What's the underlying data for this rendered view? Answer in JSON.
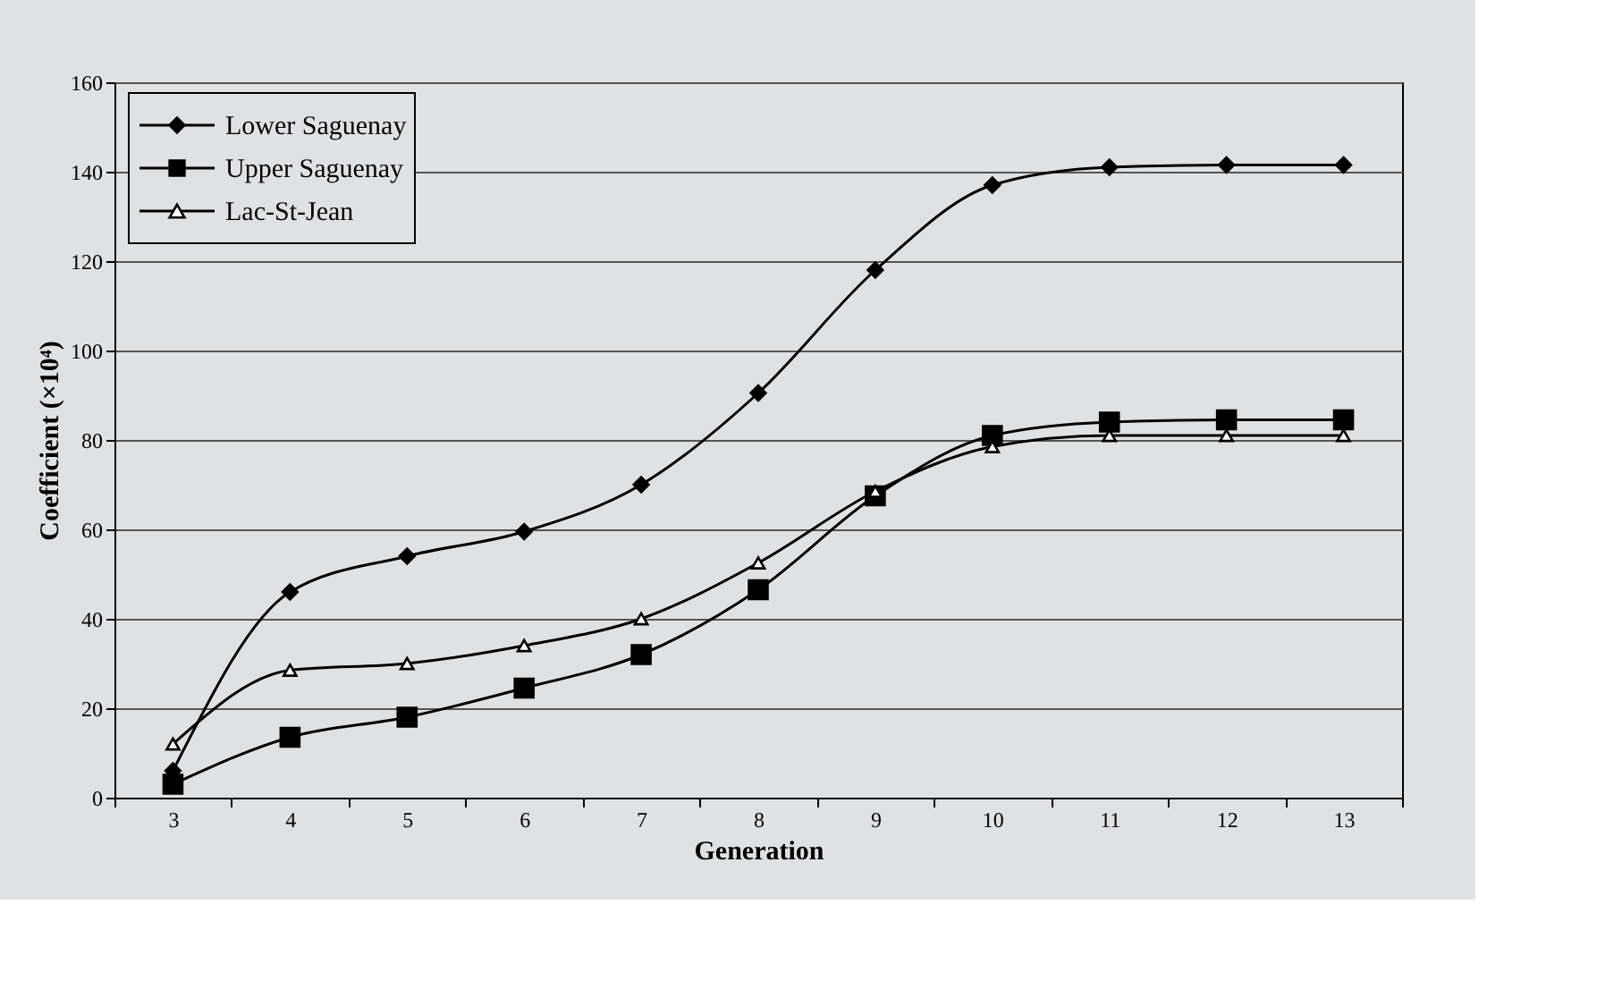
{
  "chart_data": {
    "type": "line",
    "xlabel": "Generation",
    "ylabel": "Coefficient (×10⁴)",
    "categories": [
      "3",
      "4",
      "5",
      "6",
      "7",
      "8",
      "9",
      "10",
      "11",
      "12",
      "13"
    ],
    "ylim": [
      0,
      160
    ],
    "yticks": [
      0,
      20,
      40,
      60,
      80,
      100,
      120,
      140,
      160
    ],
    "grid": "y",
    "legend": "top left",
    "series": [
      {
        "name": "Lower Saguenay",
        "color": "#000000",
        "marker": "diamond",
        "values": [
          6,
          46,
          54,
          59.5,
          70,
          90.5,
          118,
          137,
          141,
          141.5,
          141.5
        ]
      },
      {
        "name": "Upper Saguenay",
        "color": "#000000",
        "marker": "square",
        "values": [
          3,
          13.5,
          18,
          24.5,
          32,
          46.5,
          67.5,
          81,
          84,
          84.5,
          84.5
        ]
      },
      {
        "name": "Lac-St-Jean",
        "color": "#000000",
        "marker": "triangle",
        "values": [
          12,
          28.5,
          30,
          34,
          40,
          52.5,
          68.5,
          78.5,
          81,
          81,
          81
        ]
      }
    ]
  }
}
